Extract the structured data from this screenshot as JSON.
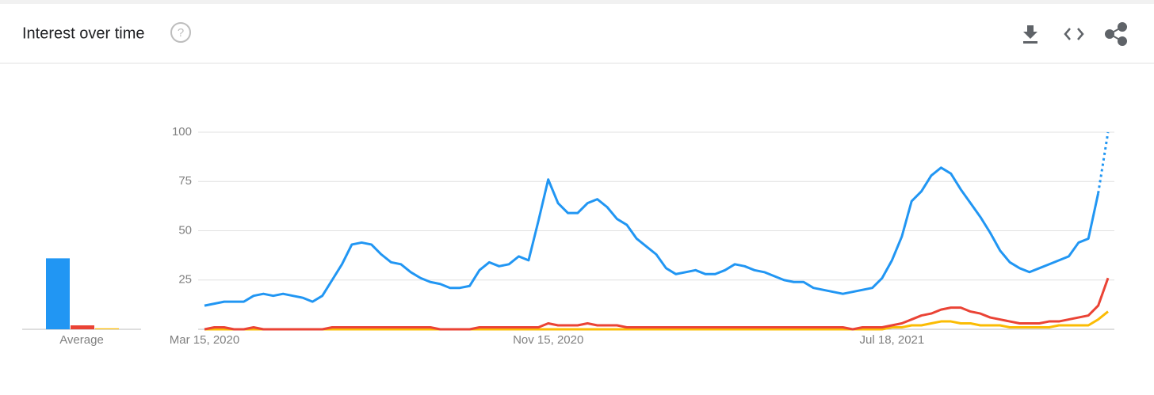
{
  "chart_data": {
    "type": "line",
    "title": "Interest over time",
    "categories": [
      "Mar 15, 2020",
      null,
      null,
      null,
      null,
      null,
      null,
      null,
      null,
      null,
      null,
      null,
      null,
      null,
      null,
      null,
      null,
      null,
      null,
      null,
      null,
      null,
      null,
      null,
      null,
      null,
      null,
      null,
      null,
      null,
      null,
      null,
      null,
      null,
      null,
      "Nov 15, 2020",
      null,
      null,
      null,
      null,
      null,
      null,
      null,
      null,
      null,
      null,
      null,
      null,
      null,
      null,
      null,
      null,
      null,
      null,
      null,
      null,
      null,
      null,
      null,
      null,
      null,
      null,
      null,
      null,
      null,
      null,
      null,
      null,
      null,
      null,
      "Jul 18, 2021",
      null,
      null,
      null,
      null,
      null,
      null,
      null,
      null,
      null,
      null,
      null,
      null,
      null,
      null,
      null,
      null,
      null,
      null,
      null,
      null,
      null,
      null
    ],
    "average_label": "Average",
    "series": [
      {
        "color": "#2196f3",
        "partial_last": true,
        "average": 36,
        "values": [
          12,
          13,
          14,
          14,
          14,
          17,
          18,
          17,
          18,
          17,
          16,
          14,
          17,
          25,
          33,
          43,
          44,
          43,
          38,
          34,
          33,
          29,
          26,
          24,
          23,
          21,
          21,
          22,
          30,
          34,
          32,
          33,
          37,
          35,
          55,
          76,
          64,
          59,
          59,
          64,
          66,
          62,
          56,
          53,
          46,
          42,
          38,
          31,
          28,
          29,
          30,
          28,
          28,
          30,
          33,
          32,
          30,
          29,
          27,
          25,
          24,
          24,
          21,
          20,
          19,
          18,
          19,
          20,
          21,
          26,
          35,
          47,
          65,
          70,
          78,
          82,
          79,
          71,
          64,
          57,
          49,
          40,
          34,
          31,
          29,
          31,
          33,
          35,
          37,
          44,
          46,
          69,
          100
        ]
      },
      {
        "color": "#ea4335",
        "partial_last": false,
        "average": 2,
        "values": [
          0,
          1,
          1,
          0,
          0,
          1,
          0,
          0,
          0,
          0,
          0,
          0,
          0,
          1,
          1,
          1,
          1,
          1,
          1,
          1,
          1,
          1,
          1,
          1,
          0,
          0,
          0,
          0,
          1,
          1,
          1,
          1,
          1,
          1,
          1,
          3,
          2,
          2,
          2,
          3,
          2,
          2,
          2,
          1,
          1,
          1,
          1,
          1,
          1,
          1,
          1,
          1,
          1,
          1,
          1,
          1,
          1,
          1,
          1,
          1,
          1,
          1,
          1,
          1,
          1,
          1,
          0,
          1,
          1,
          1,
          2,
          3,
          5,
          7,
          8,
          10,
          11,
          11,
          9,
          8,
          6,
          5,
          4,
          3,
          3,
          3,
          4,
          4,
          5,
          6,
          7,
          12,
          26
        ]
      },
      {
        "color": "#fbbc04",
        "partial_last": false,
        "average": 0.5,
        "values": [
          0,
          0,
          0,
          0,
          0,
          0,
          0,
          0,
          0,
          0,
          0,
          0,
          0,
          0,
          0,
          0,
          0,
          0,
          0,
          0,
          0,
          0,
          0,
          0,
          0,
          0,
          0,
          0,
          0,
          0,
          0,
          0,
          0,
          0,
          0,
          0,
          0,
          0,
          0,
          0,
          0,
          0,
          0,
          0,
          0,
          0,
          0,
          0,
          0,
          0,
          0,
          0,
          0,
          0,
          0,
          0,
          0,
          0,
          0,
          0,
          0,
          0,
          0,
          0,
          0,
          0,
          0,
          0,
          0,
          0,
          1,
          1,
          2,
          2,
          3,
          4,
          4,
          3,
          3,
          2,
          2,
          2,
          1,
          1,
          1,
          1,
          1,
          2,
          2,
          2,
          2,
          5,
          9
        ]
      }
    ],
    "ylim": [
      0,
      100
    ],
    "yticks": [
      25,
      50,
      75,
      100
    ],
    "grid": true
  }
}
